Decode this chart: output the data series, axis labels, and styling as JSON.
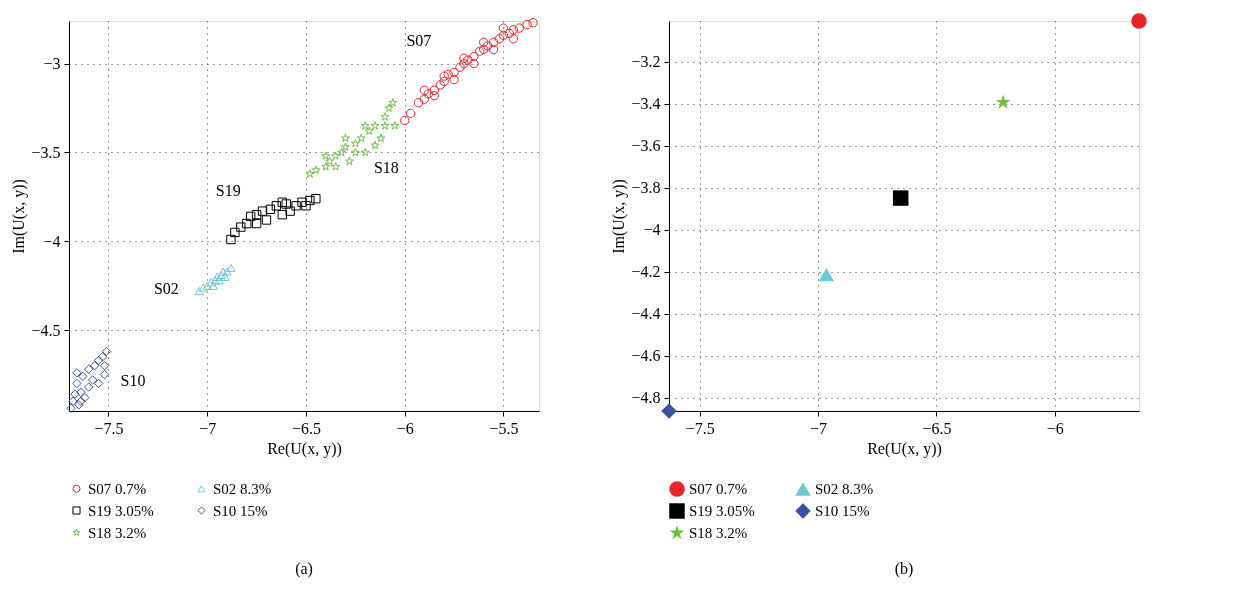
{
  "chart_data": [
    {
      "type": "scatter",
      "title": "(a)",
      "xlabel": "Re(U(x, y))",
      "ylabel": "Im(U(x, y))",
      "xlim": [
        -7.7,
        -5.32
      ],
      "ylim": [
        -4.955,
        -2.76
      ],
      "xticks": [
        -7.5,
        -7,
        -6.5,
        -6,
        -5.5
      ],
      "yticks": [
        -4.5,
        -4,
        -3.5,
        -3
      ],
      "grid": true,
      "legend": "bottom",
      "series": [
        {
          "name": "S07 0.7%",
          "color": "#e8242b",
          "marker": "circle",
          "x": [
            -6.0,
            -5.97,
            -5.93,
            -5.9,
            -5.88,
            -5.85,
            -5.82,
            -5.8,
            -5.78,
            -5.75,
            -5.72,
            -5.7,
            -5.68,
            -5.65,
            -5.62,
            -5.6,
            -5.58,
            -5.55,
            -5.52,
            -5.5,
            -5.47,
            -5.45,
            -5.42,
            -5.38,
            -5.35,
            -5.9,
            -5.8,
            -5.7,
            -5.6,
            -5.5,
            -5.85,
            -5.75,
            -5.65,
            -5.55,
            -5.45
          ],
          "values": [
            -3.32,
            -3.28,
            -3.22,
            -3.2,
            -3.17,
            -3.15,
            -3.12,
            -3.1,
            -3.06,
            -3.05,
            -3.02,
            -3.0,
            -2.98,
            -2.96,
            -2.93,
            -2.92,
            -2.9,
            -2.88,
            -2.86,
            -2.84,
            -2.83,
            -2.81,
            -2.8,
            -2.78,
            -2.77,
            -3.15,
            -3.07,
            -2.97,
            -2.88,
            -2.8,
            -3.18,
            -3.09,
            -3.0,
            -2.92,
            -2.86
          ]
        },
        {
          "name": "S19 3.05%",
          "color": "#000000",
          "marker": "square",
          "x": [
            -6.88,
            -6.86,
            -6.83,
            -6.8,
            -6.78,
            -6.75,
            -6.72,
            -6.7,
            -6.68,
            -6.65,
            -6.62,
            -6.6,
            -6.58,
            -6.55,
            -6.52,
            -6.5,
            -6.48,
            -6.45,
            -6.62,
            -6.75
          ],
          "values": [
            -3.99,
            -3.95,
            -3.92,
            -3.9,
            -3.86,
            -3.85,
            -3.83,
            -3.88,
            -3.82,
            -3.8,
            -3.85,
            -3.79,
            -3.83,
            -3.8,
            -3.78,
            -3.8,
            -3.77,
            -3.76,
            -3.78,
            -3.9
          ]
        },
        {
          "name": "S18 3.2%",
          "color": "#6abf45",
          "marker": "star",
          "x": [
            -6.48,
            -6.45,
            -6.4,
            -6.38,
            -6.35,
            -6.32,
            -6.3,
            -6.28,
            -6.25,
            -6.22,
            -6.2,
            -6.18,
            -6.15,
            -6.12,
            -6.1,
            -6.08,
            -6.06,
            -6.05,
            -6.15,
            -6.35,
            -6.25,
            -6.4,
            -6.3,
            -6.2,
            -6.1
          ],
          "values": [
            -3.62,
            -3.6,
            -3.58,
            -3.55,
            -3.52,
            -3.5,
            -3.47,
            -3.55,
            -3.45,
            -3.42,
            -3.5,
            -3.38,
            -3.35,
            -3.42,
            -3.3,
            -3.25,
            -3.22,
            -3.35,
            -3.46,
            -3.58,
            -3.5,
            -3.52,
            -3.42,
            -3.35,
            -3.35
          ]
        },
        {
          "name": "S02 8.3%",
          "color": "#6ccad6",
          "marker": "triangle",
          "x": [
            -7.04,
            -7.02,
            -7.0,
            -6.98,
            -6.96,
            -6.95,
            -6.93,
            -6.92,
            -6.9,
            -6.88,
            -6.97,
            -6.94,
            -6.91
          ],
          "values": [
            -4.28,
            -4.26,
            -4.25,
            -4.23,
            -4.22,
            -4.2,
            -4.19,
            -4.17,
            -4.17,
            -4.15,
            -4.25,
            -4.22,
            -4.2
          ]
        },
        {
          "name": "S10 15%",
          "color": "#3a52a3",
          "marker": "diamond",
          "x": [
            -7.69,
            -7.68,
            -7.67,
            -7.66,
            -7.65,
            -7.64,
            -7.63,
            -7.62,
            -7.6,
            -7.6,
            -7.58,
            -7.57,
            -7.55,
            -7.55,
            -7.53,
            -7.52,
            -7.51,
            -7.52,
            -7.66,
            -7.64
          ],
          "values": [
            -4.94,
            -4.9,
            -4.86,
            -4.8,
            -4.92,
            -4.85,
            -4.76,
            -4.88,
            -4.72,
            -4.82,
            -4.78,
            -4.7,
            -4.67,
            -4.8,
            -4.65,
            -4.75,
            -4.62,
            -4.7,
            -4.74,
            -4.9
          ]
        }
      ],
      "annotations": [
        "S07",
        "S19",
        "S18",
        "S02",
        "S10"
      ]
    },
    {
      "type": "scatter",
      "title": "(b)",
      "xlabel": "Re(U(x, y))",
      "ylabel": "Im(U(x, y))",
      "xlim": [
        -7.63,
        -5.644
      ],
      "ylim": [
        -4.864,
        -3.005
      ],
      "xticks": [
        -7.5,
        -7,
        -6.5,
        -6
      ],
      "yticks": [
        -4.8,
        -4.6,
        -4.4,
        -4.2,
        -4,
        -3.8,
        -3.6,
        -3.4,
        -3.2
      ],
      "grid": true,
      "legend": "bottom",
      "series": [
        {
          "name": "S07 0.7%",
          "color": "#e8242b",
          "marker": "circle",
          "x": [
            -5.644
          ],
          "values": [
            -3.005
          ]
        },
        {
          "name": "S19 3.05%",
          "color": "#000000",
          "marker": "square",
          "x": [
            -6.651
          ],
          "values": [
            -3.849
          ]
        },
        {
          "name": "S18 3.2%",
          "color": "#6abf45",
          "marker": "star",
          "x": [
            -6.218
          ],
          "values": [
            -3.393
          ]
        },
        {
          "name": "S02 8.3%",
          "color": "#6ccad6",
          "marker": "triangle",
          "x": [
            -6.965
          ],
          "values": [
            -4.213
          ]
        },
        {
          "name": "S10 15%",
          "color": "#3a52a3",
          "marker": "diamond",
          "x": [
            -7.63
          ],
          "values": [
            -4.864
          ]
        }
      ]
    }
  ]
}
